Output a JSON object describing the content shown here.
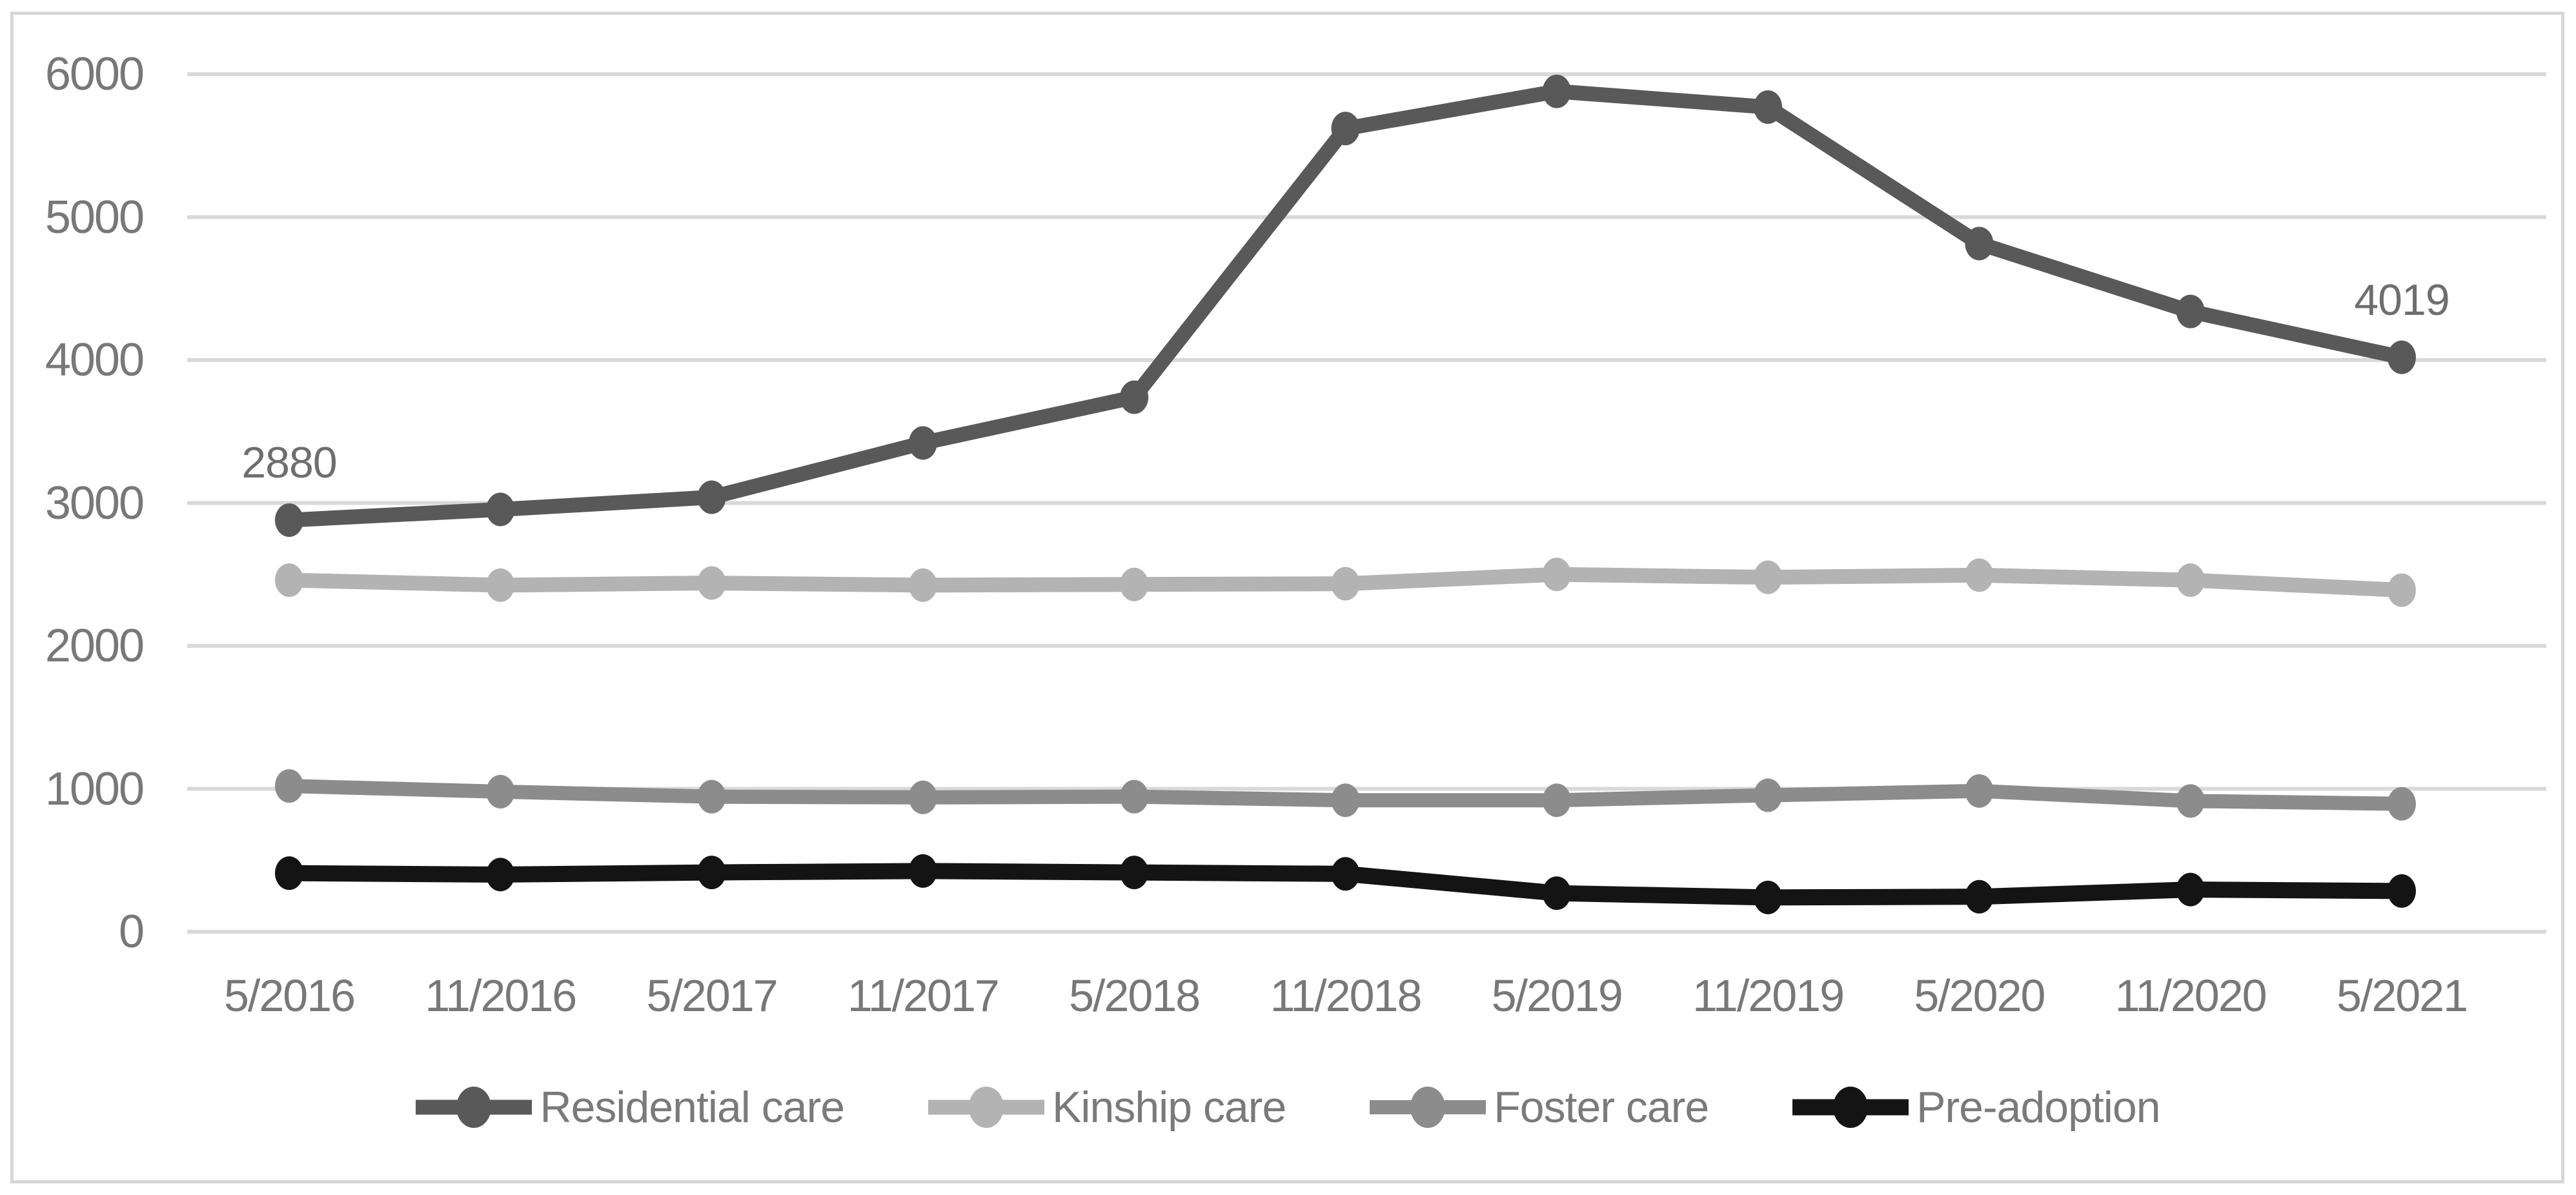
{
  "chart_data": {
    "type": "line",
    "title": "",
    "x_labels": [
      "5/2016",
      "11/2016",
      "5/2017",
      "11/2017",
      "5/2018",
      "11/2018",
      "5/2019",
      "11/2019",
      "5/2020",
      "11/2020",
      "5/2021"
    ],
    "y_ticks": [
      0,
      1000,
      2000,
      3000,
      4000,
      5000,
      6000
    ],
    "ylim": [
      0,
      6000
    ],
    "grid": true,
    "legend_position": "bottom",
    "series": [
      {
        "name": "Residential care",
        "color": "#595959",
        "line_width": 23,
        "values": [
          2880,
          2955,
          3040,
          3420,
          3740,
          5620,
          5880,
          5770,
          4815,
          4340,
          4019
        ]
      },
      {
        "name": "Kinship care",
        "color": "#b3b3b3",
        "line_width": 23,
        "values": [
          2460,
          2425,
          2440,
          2425,
          2430,
          2435,
          2500,
          2480,
          2495,
          2460,
          2390
        ]
      },
      {
        "name": "Foster care",
        "color": "#8c8c8c",
        "line_width": 22,
        "values": [
          1020,
          980,
          945,
          940,
          945,
          920,
          920,
          955,
          985,
          915,
          895
        ]
      },
      {
        "name": "Pre-adoption",
        "color": "#141414",
        "line_width": 25,
        "values": [
          410,
          400,
          415,
          425,
          415,
          405,
          270,
          240,
          245,
          295,
          285
        ]
      }
    ],
    "point_labels": [
      {
        "series_index": 0,
        "point_index": 0,
        "text": "2880"
      },
      {
        "series_index": 0,
        "point_index": 10,
        "text": "4019"
      }
    ]
  },
  "colors": {
    "background": "#ffffff",
    "gridline": "#d9d9d9",
    "border": "#d7d7d7",
    "axis_text": "#787878",
    "legend_text": "#7a7a7a",
    "data_label_text": "#6e6e6e"
  }
}
